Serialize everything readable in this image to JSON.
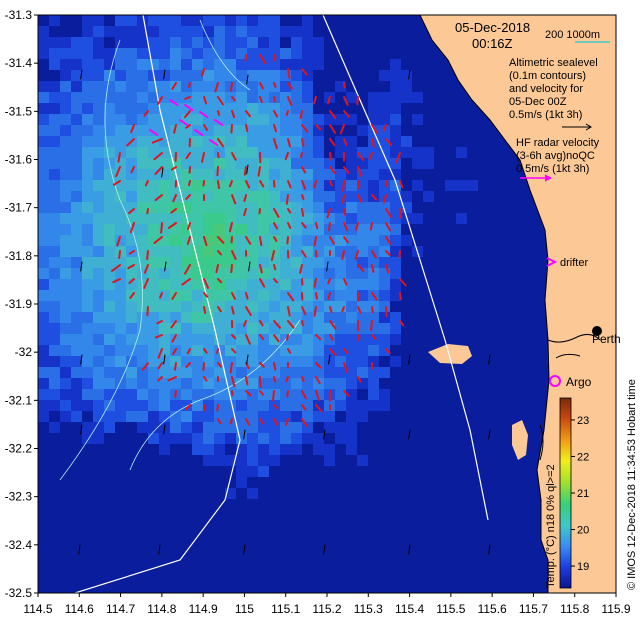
{
  "header": {
    "date": "05-Dec-2018",
    "time": "00:16Z",
    "isobath_label": "200  1000m"
  },
  "legend": {
    "altimetry_lines": [
      "Altimetric sealevel",
      "(0.1m contours)",
      "and velocity for",
      "05-Dec 00Z",
      "0.5m/s (1kt 3h)"
    ],
    "radar_lines": [
      "HF radar velocity",
      "(3-6h avg)noQC",
      "0.5m/s (1kt 3h)"
    ],
    "drifter_label": "drifter",
    "argo_label": "Argo",
    "city_label": "Perth"
  },
  "colorbar": {
    "title": "Temp. (°C) n18 0% ql>=2",
    "ticks": [
      "19",
      "20",
      "21",
      "22",
      "23"
    ],
    "range": [
      18.4,
      23.6
    ],
    "colors": [
      "#0a1590",
      "#1c3ee0",
      "#3b8cf2",
      "#40c8c8",
      "#36cf7a",
      "#a6e22d",
      "#f2ee1e",
      "#f09a18",
      "#c84a12",
      "#7a2a0c"
    ]
  },
  "credit": "© IMOS 12-Dec-2018 11:34:53 Hobart time",
  "axes": {
    "x_ticks": [
      "114.5",
      "114.6",
      "114.7",
      "114.8",
      "114.9",
      "115",
      "115.1",
      "115.2",
      "115.3",
      "115.4",
      "115.5",
      "115.6",
      "115.7",
      "115.8",
      "115.9"
    ],
    "y_ticks": [
      "-31.3",
      "-31.4",
      "-31.5",
      "-31.6",
      "-31.7",
      "-31.8",
      "-31.9",
      "-32",
      "-32.1",
      "-32.2",
      "-32.3",
      "-32.4",
      "-32.5"
    ],
    "xlim": [
      114.5,
      115.9
    ],
    "ylim": [
      -32.5,
      -31.3
    ]
  },
  "colors": {
    "land": "#fbc896",
    "radar_arrow": "#e0141e",
    "alt_arrow": "#000000",
    "drifter": "#ff00ff",
    "argo": "#ff00ff",
    "isobath": "#ffffff",
    "contour": "#b0f0f0"
  }
}
